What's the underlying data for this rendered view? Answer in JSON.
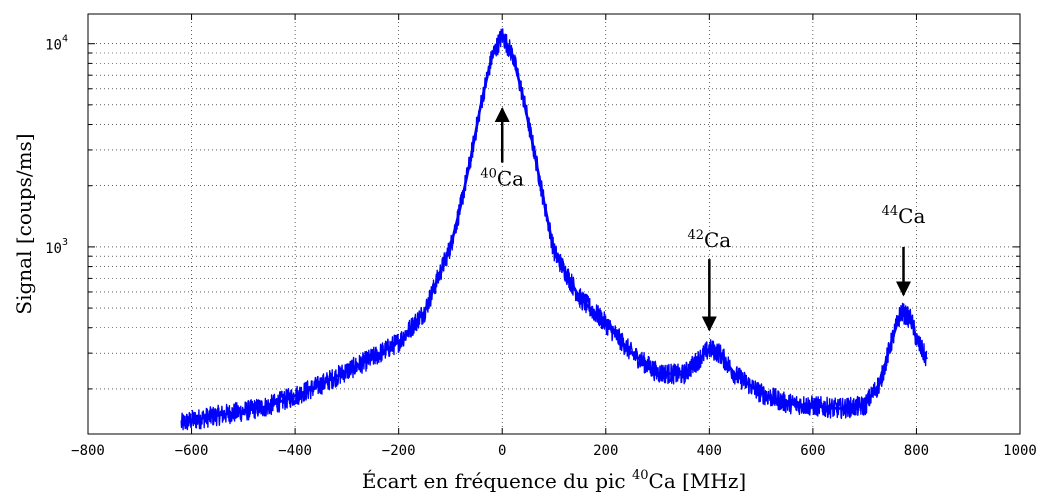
{
  "chart_data": {
    "type": "line",
    "xlabel": {
      "prefix": "Écart en fréquence du pic ",
      "sup": "40",
      "suffix": "Ca [MHz]"
    },
    "ylabel": "Signal [coups/ms]",
    "xlim": [
      -800,
      1000
    ],
    "ylim": [
      120,
      14000
    ],
    "yscale": "log",
    "grid": true,
    "x_ticks": [
      -800,
      -600,
      -400,
      -200,
      0,
      200,
      400,
      600,
      800,
      1000
    ],
    "x_tick_labels": [
      "−800",
      "−600",
      "−400",
      "−200",
      "0",
      "200",
      "400",
      "600",
      "800",
      "1000"
    ],
    "y_major_ticks": [
      1000,
      10000
    ],
    "y_tick_labels": [
      {
        "base": "10",
        "exp": "3"
      },
      {
        "base": "10",
        "exp": "4"
      }
    ],
    "series": [
      {
        "color": "#0000ff",
        "x": [
          -620,
          -600,
          -550,
          -500,
          -450,
          -400,
          -350,
          -300,
          -250,
          -200,
          -150,
          -100,
          -80,
          -60,
          -40,
          -20,
          0,
          20,
          40,
          60,
          80,
          100,
          150,
          200,
          250,
          300,
          350,
          380,
          400,
          420,
          450,
          500,
          550,
          600,
          650,
          700,
          730,
          750,
          770,
          790,
          800,
          820
        ],
        "y": [
          135,
          140,
          148,
          155,
          165,
          185,
          210,
          245,
          285,
          340,
          480,
          1000,
          1600,
          2800,
          5200,
          8600,
          11000,
          8800,
          5500,
          3100,
          1700,
          950,
          560,
          420,
          300,
          240,
          235,
          280,
          315,
          300,
          235,
          190,
          170,
          165,
          160,
          165,
          215,
          330,
          480,
          440,
          350,
          280
        ]
      }
    ],
    "annotations": [
      {
        "sup": "40",
        "text": "Ca",
        "arrow_x": 0,
        "arrow_tip": 4800,
        "arrow_tail": 2600,
        "direction": "up",
        "label_y": 2000
      },
      {
        "sup": "42",
        "text": "Ca",
        "arrow_x": 400,
        "arrow_tip": 390,
        "arrow_tail": 870,
        "direction": "down",
        "label_y": 1000
      },
      {
        "sup": "44",
        "text": "Ca",
        "arrow_x": 775,
        "arrow_tip": 580,
        "arrow_tail": 1000,
        "direction": "down",
        "label_y": 1310
      }
    ]
  }
}
